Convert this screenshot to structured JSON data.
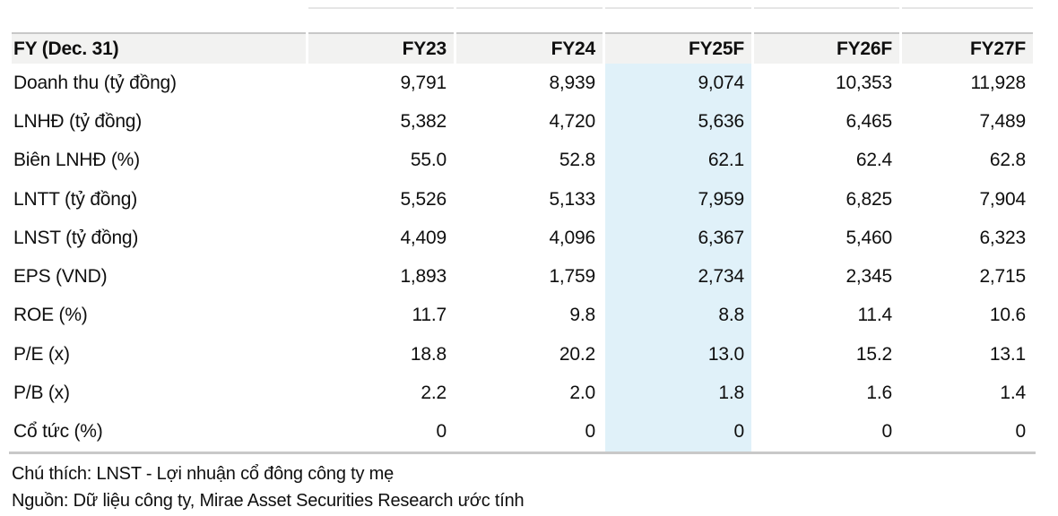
{
  "chart_data": {
    "type": "table",
    "columns": [
      "FY (Dec. 31)",
      "FY23",
      "FY24",
      "FY25F",
      "FY26F",
      "FY27F"
    ],
    "highlighted_column": "FY25F",
    "rows": [
      {
        "label": "Doanh thu (tỷ đồng)",
        "values": [
          "9,791",
          "8,939",
          "9,074",
          "10,353",
          "11,928"
        ]
      },
      {
        "label": "LNHĐ (tỷ đồng)",
        "values": [
          "5,382",
          "4,720",
          "5,636",
          "6,465",
          "7,489"
        ]
      },
      {
        "label": "Biên LNHĐ (%)",
        "values": [
          "55.0",
          "52.8",
          "62.1",
          "62.4",
          "62.8"
        ]
      },
      {
        "label": "LNTT (tỷ đồng)",
        "values": [
          "5,526",
          "5,133",
          "7,959",
          "6,825",
          "7,904"
        ]
      },
      {
        "label": "LNST (tỷ đồng)",
        "values": [
          "4,409",
          "4,096",
          "6,367",
          "5,460",
          "6,323"
        ]
      },
      {
        "label": "EPS (VND)",
        "values": [
          "1,893",
          "1,759",
          "2,734",
          "2,345",
          "2,715"
        ]
      },
      {
        "label": "ROE (%)",
        "values": [
          "11.7",
          "9.8",
          "8.8",
          "11.4",
          "10.6"
        ]
      },
      {
        "label": "P/E (x)",
        "values": [
          "18.8",
          "20.2",
          "13.0",
          "15.2",
          "13.1"
        ]
      },
      {
        "label": "P/B (x)",
        "values": [
          "2.2",
          "2.0",
          "1.8",
          "1.6",
          "1.4"
        ]
      },
      {
        "label": "Cổ tức (%)",
        "values": [
          "0",
          "0",
          "0",
          "0",
          "0"
        ]
      }
    ]
  },
  "footnotes": {
    "note": "Chú thích: LNST - Lợi nhuận cổ đông công ty mẹ",
    "source": "Nguồn: Dữ liệu công ty, Mirae Asset Securities Research ước tính"
  },
  "colors": {
    "header_bg": "#f2f2f1",
    "highlight_bg": "#e0f1f9",
    "border": "#c8c8c8",
    "text": "#0f0f0f"
  }
}
